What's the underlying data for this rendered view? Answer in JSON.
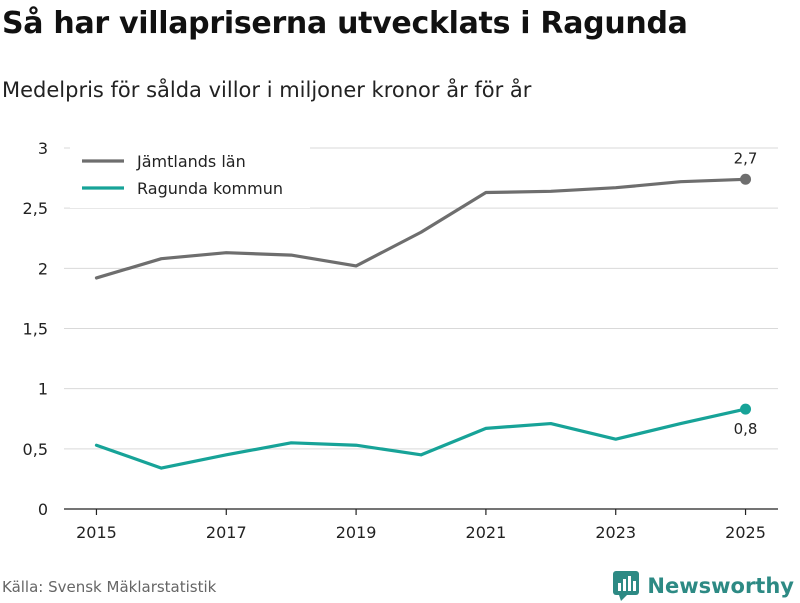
{
  "header": {
    "title": "Så har villapriserna utvecklats i Ragunda",
    "subtitle": "Medelpris för sålda villor i miljoner kronor år för år"
  },
  "footer": {
    "source": "Källa: Svensk Mäklarstatistik",
    "brand": "Newsworthy"
  },
  "colors": {
    "jamtland": "#6e6e6e",
    "ragunda": "#17a398",
    "grid": "#d9d9d9",
    "brand": "#2d8a84"
  },
  "chart_data": {
    "type": "line",
    "title": "Så har villapriserna utvecklats i Ragunda",
    "subtitle": "Medelpris för sålda villor i miljoner kronor år för år",
    "xlabel": "",
    "ylabel": "",
    "x": [
      2015,
      2016,
      2017,
      2018,
      2019,
      2020,
      2021,
      2022,
      2023,
      2024,
      2025
    ],
    "xlim": [
      2014.5,
      2025.5
    ],
    "ylim": [
      0,
      3
    ],
    "x_ticks": [
      2015,
      2017,
      2019,
      2021,
      2023,
      2025
    ],
    "x_tick_labels": [
      "2015",
      "2017",
      "2019",
      "2021",
      "2023",
      "2025"
    ],
    "y_ticks": [
      0,
      0.5,
      1,
      1.5,
      2,
      2.5,
      3
    ],
    "y_tick_labels": [
      "0",
      "0,5",
      "1",
      "1,5",
      "2",
      "2,5",
      "3"
    ],
    "grid": true,
    "legend_position": "top-left",
    "series": [
      {
        "name": "Jämtlands län",
        "color": "#6e6e6e",
        "values": [
          1.92,
          2.08,
          2.13,
          2.11,
          2.02,
          2.3,
          2.63,
          2.64,
          2.67,
          2.72,
          2.74
        ],
        "end_label": "2,7"
      },
      {
        "name": "Ragunda kommun",
        "color": "#17a398",
        "values": [
          0.53,
          0.34,
          0.45,
          0.55,
          0.53,
          0.45,
          0.67,
          0.71,
          0.58,
          0.71,
          0.83
        ],
        "end_label": "0,8"
      }
    ]
  }
}
